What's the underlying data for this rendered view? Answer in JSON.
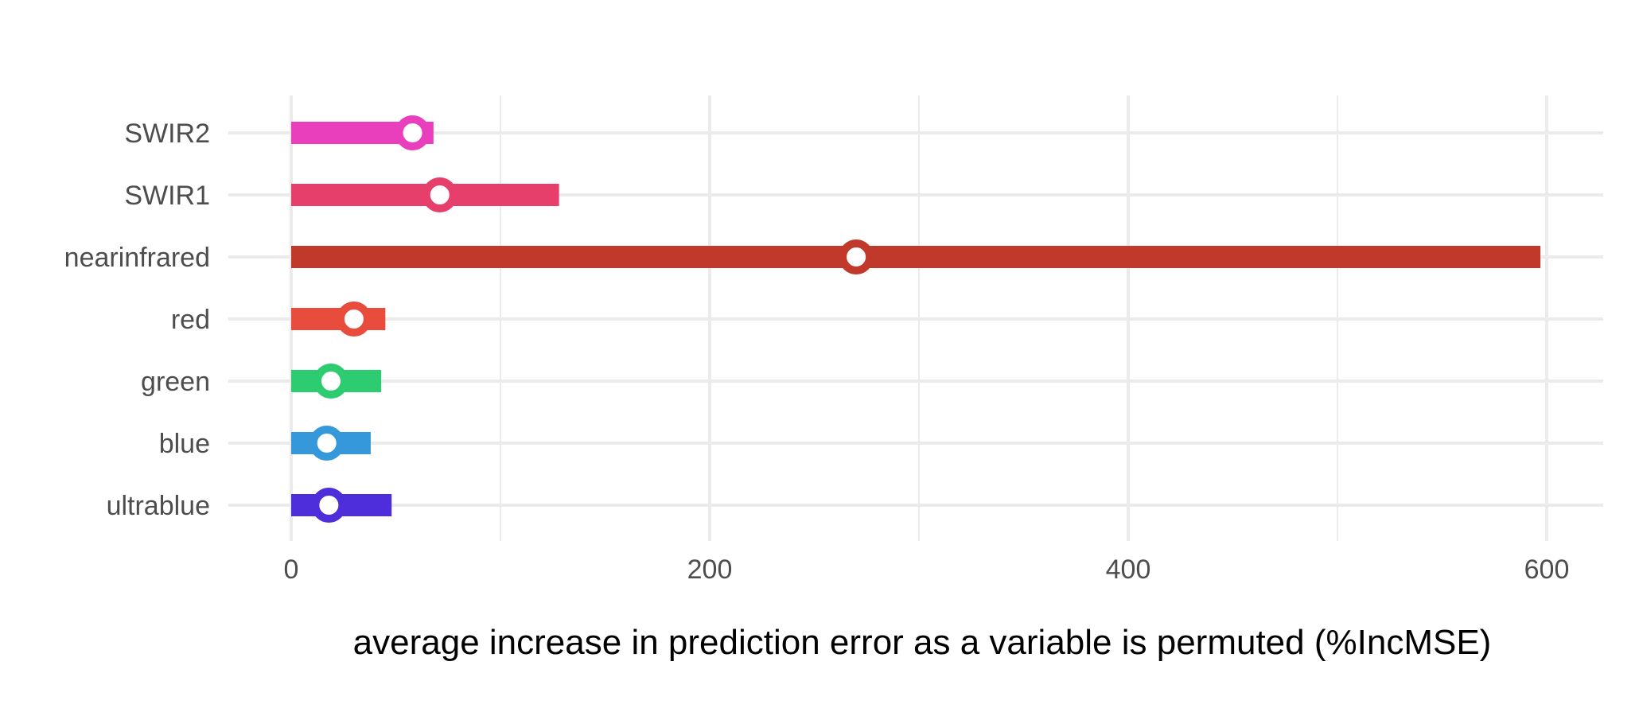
{
  "chart_data": {
    "type": "dot-range",
    "title": "",
    "xlabel": "average increase in prediction error as a variable is permuted (%IncMSE)",
    "ylabel": "",
    "xlim": [
      -30,
      630
    ],
    "x_ticks": [
      0,
      200,
      400,
      600
    ],
    "x_tick_labels": [
      "0",
      "200",
      "400",
      "600"
    ],
    "grid": true,
    "legend": "none",
    "categories": [
      "SWIR2",
      "SWIR1",
      "nearinfrared",
      "red",
      "green",
      "blue",
      "ultrablue"
    ],
    "series": [
      {
        "ranges": [
          {
            "category": "SWIR2",
            "start": 0,
            "end": 68,
            "point": 58,
            "color": "#e93fbc"
          },
          {
            "category": "SWIR1",
            "start": 0,
            "end": 128,
            "point": 71,
            "color": "#e73f6c"
          },
          {
            "category": "nearinfrared",
            "start": 0,
            "end": 597,
            "point": 270,
            "color": "#c0392b"
          },
          {
            "category": "red",
            "start": 0,
            "end": 45,
            "point": 30,
            "color": "#e74c3c"
          },
          {
            "category": "green",
            "start": 0,
            "end": 43,
            "point": 19,
            "color": "#2ecc71"
          },
          {
            "category": "blue",
            "start": 0,
            "end": 38,
            "point": 17,
            "color": "#3498db"
          },
          {
            "category": "ultrablue",
            "start": 0,
            "end": 48,
            "point": 18,
            "color": "#4e2ddb"
          }
        ]
      }
    ]
  }
}
